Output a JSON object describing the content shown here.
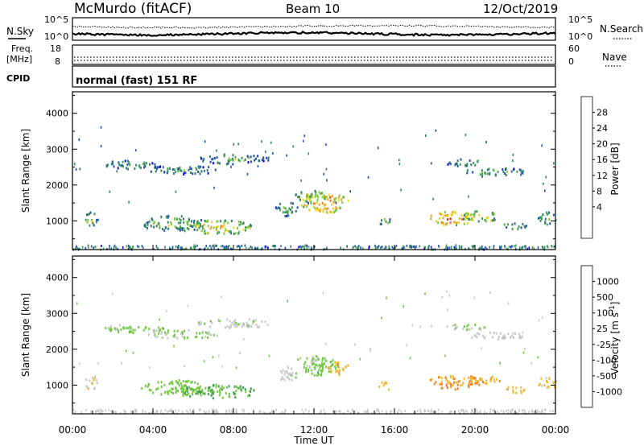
{
  "header": {
    "station": "McMurdo (fitACF)",
    "beam": "Beam 10",
    "date": "12/Oct/2019"
  },
  "top_panel": {
    "left_label": "N.Sky",
    "left_ticks": [
      "10^5",
      "10^0"
    ],
    "right_label": "N.Search",
    "right_ticks": [
      "10^5",
      "10^0"
    ]
  },
  "freq_panel": {
    "left_label_1": "Freq.",
    "left_label_2": "[MHz]",
    "left_ticks": [
      "18",
      "8"
    ],
    "right_label": "Nave",
    "right_ticks": [
      "60",
      "0"
    ]
  },
  "cpid_panel": {
    "label": "CPID",
    "text": "normal (fast) 151 RF"
  },
  "x_axis": {
    "label": "Time UT",
    "ticks": [
      "00:00",
      "04:00",
      "08:00",
      "12:00",
      "16:00",
      "20:00",
      "00:00"
    ]
  },
  "chart_data": [
    {
      "type": "heatmap",
      "ylabel": "Slant Range [km]",
      "xlabel": "Time UT",
      "x_range_hours": [
        0,
        24
      ],
      "ylim": [
        200,
        4600
      ],
      "yticks": [
        "4000",
        "3000",
        "2000",
        "1000"
      ],
      "colorbar": {
        "label": "Power [dB]",
        "ticks": [
          "28",
          "24",
          "20",
          "16",
          "12",
          "8",
          "4"
        ],
        "range": [
          0,
          32
        ],
        "colors": [
          "#0000ff",
          "#1f4fb0",
          "#2f7f6f",
          "#3fa050",
          "#80c840",
          "#e8d820",
          "#f0a020",
          "#f07010",
          "#e02010"
        ]
      },
      "regions": [
        {
          "t": 0.9,
          "r": 1100,
          "dt": 0.35,
          "dr": 420,
          "v": 9
        },
        {
          "t": 5.0,
          "r": 950,
          "dt": 1.6,
          "dr": 450,
          "v": 8
        },
        {
          "t": 7.2,
          "r": 850,
          "dt": 1.9,
          "dr": 400,
          "v": 13
        },
        {
          "t": 5.5,
          "r": 2450,
          "dt": 1.8,
          "dr": 250,
          "v": 5
        },
        {
          "t": 8.0,
          "r": 2750,
          "dt": 1.8,
          "dr": 280,
          "v": 6
        },
        {
          "t": 3.0,
          "r": 2600,
          "dt": 1.5,
          "dr": 250,
          "v": 5
        },
        {
          "t": 12.5,
          "r": 1550,
          "dt": 1.2,
          "dr": 600,
          "v": 17
        },
        {
          "t": 11.8,
          "r": 1700,
          "dt": 0.8,
          "dr": 350,
          "v": 11
        },
        {
          "t": 10.6,
          "r": 1350,
          "dt": 0.6,
          "dr": 400,
          "v": 7
        },
        {
          "t": 18.8,
          "r": 1100,
          "dt": 1.2,
          "dr": 380,
          "v": 18
        },
        {
          "t": 20.2,
          "r": 1150,
          "dt": 1.0,
          "dr": 300,
          "v": 13
        },
        {
          "t": 22.0,
          "r": 900,
          "dt": 0.6,
          "dr": 200,
          "v": 8
        },
        {
          "t": 23.6,
          "r": 1100,
          "dt": 0.5,
          "dr": 350,
          "v": 8
        },
        {
          "t": 21.0,
          "r": 2400,
          "dt": 1.6,
          "dr": 200,
          "v": 6
        },
        {
          "t": 19.5,
          "r": 2650,
          "dt": 1.0,
          "dr": 200,
          "v": 5
        },
        {
          "t": 15.5,
          "r": 1000,
          "dt": 0.3,
          "dr": 250,
          "v": 7
        }
      ]
    },
    {
      "type": "heatmap",
      "ylabel": "Slant Range [km]",
      "xlabel": "Time UT",
      "x_range_hours": [
        0,
        24
      ],
      "ylim": [
        200,
        4600
      ],
      "yticks": [
        "4000",
        "3000",
        "2000",
        "1000"
      ],
      "colorbar": {
        "label": "Velocity [m s^-1]",
        "ticks": [
          "1000",
          "500",
          "100",
          "25",
          "-25",
          "-100",
          "-500",
          "-1000"
        ],
        "range": [
          -1200,
          1200
        ],
        "colors": [
          "#ff0000",
          "#ff5a10",
          "#f08020",
          "#f0b830",
          "#c8c8c8",
          "#70c840",
          "#3a9a50",
          "#2e6a8a",
          "#2040c0"
        ]
      },
      "regions": [
        {
          "t": 0.9,
          "r": 1100,
          "dt": 0.35,
          "dr": 420,
          "v": -80
        },
        {
          "t": 5.0,
          "r": 950,
          "dt": 1.6,
          "dr": 450,
          "v": 300
        },
        {
          "t": 7.2,
          "r": 850,
          "dt": 1.9,
          "dr": 400,
          "v": 400
        },
        {
          "t": 5.5,
          "r": 2450,
          "dt": 1.8,
          "dr": 250,
          "v": 150
        },
        {
          "t": 8.0,
          "r": 2750,
          "dt": 1.8,
          "dr": 280,
          "v": 60
        },
        {
          "t": 3.0,
          "r": 2600,
          "dt": 1.5,
          "dr": 250,
          "v": 200
        },
        {
          "t": 12.3,
          "r": 1550,
          "dt": 0.9,
          "dr": 550,
          "v": 300
        },
        {
          "t": 13.2,
          "r": 1500,
          "dt": 0.5,
          "dr": 400,
          "v": -300
        },
        {
          "t": 11.8,
          "r": 1700,
          "dt": 0.8,
          "dr": 350,
          "v": 150
        },
        {
          "t": 10.6,
          "r": 1350,
          "dt": 0.6,
          "dr": 400,
          "v": 50
        },
        {
          "t": 19.0,
          "r": 1100,
          "dt": 1.4,
          "dr": 380,
          "v": -400
        },
        {
          "t": 20.2,
          "r": 1150,
          "dt": 1.0,
          "dr": 300,
          "v": -350
        },
        {
          "t": 22.0,
          "r": 900,
          "dt": 0.6,
          "dr": 200,
          "v": -300
        },
        {
          "t": 23.6,
          "r": 1100,
          "dt": 0.5,
          "dr": 350,
          "v": -150
        },
        {
          "t": 21.0,
          "r": 2400,
          "dt": 1.6,
          "dr": 200,
          "v": 0
        },
        {
          "t": 19.5,
          "r": 2650,
          "dt": 1.0,
          "dr": 200,
          "v": 80
        },
        {
          "t": 15.5,
          "r": 1000,
          "dt": 0.3,
          "dr": 250,
          "v": -200
        }
      ]
    }
  ]
}
